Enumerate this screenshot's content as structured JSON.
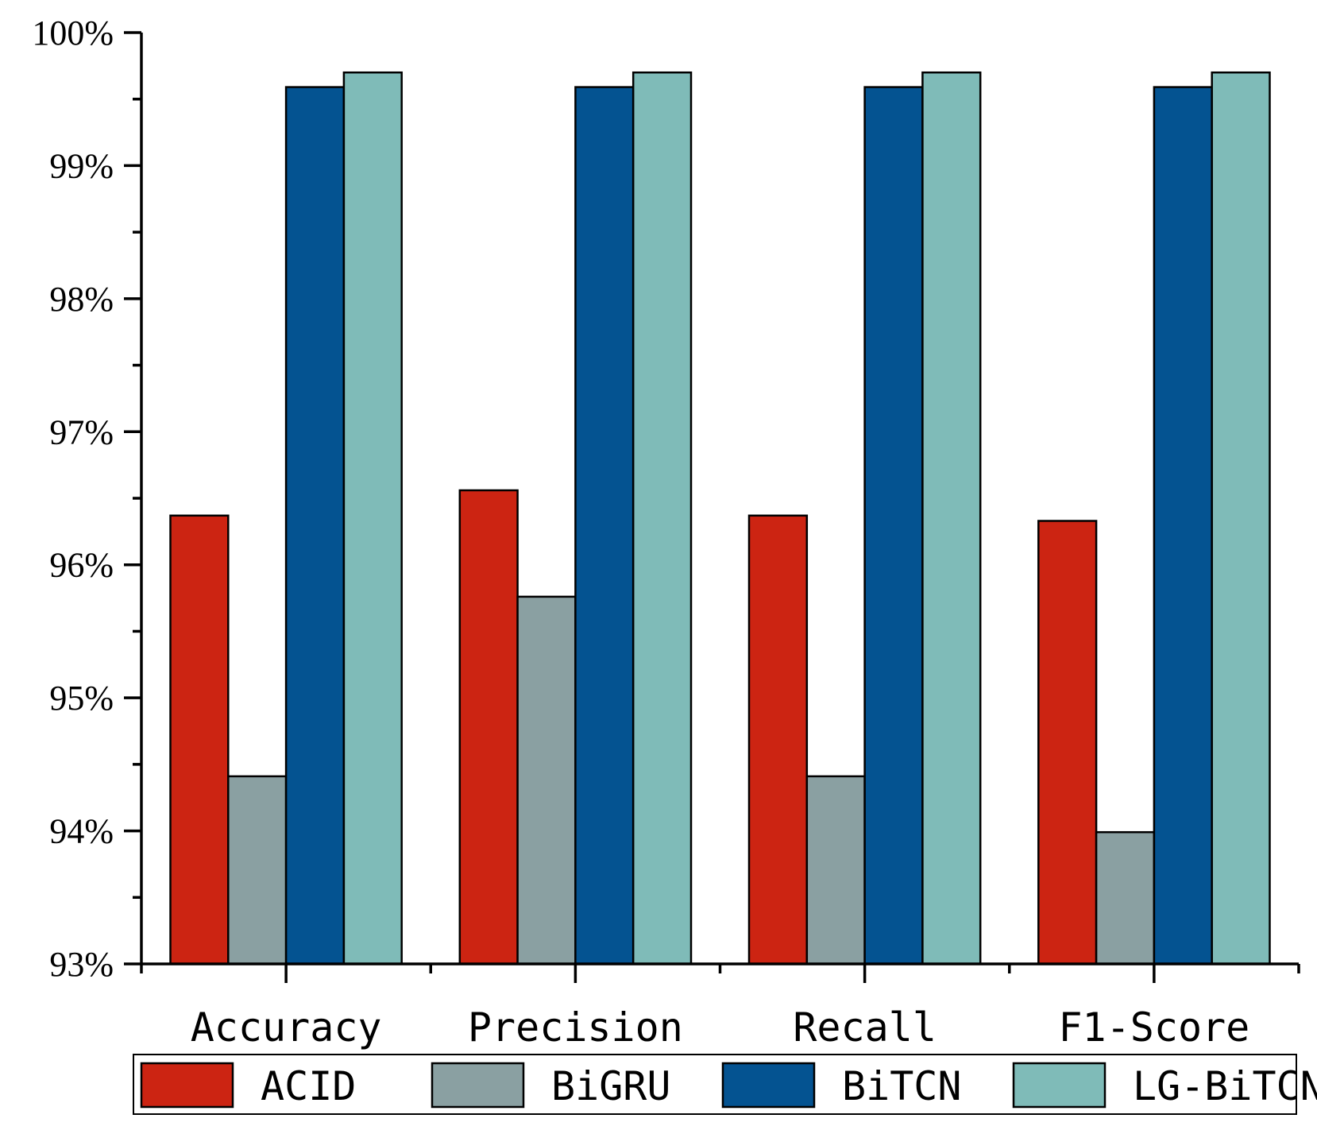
{
  "chart_data": {
    "type": "bar",
    "title": "",
    "xlabel": "",
    "ylabel": "",
    "categories": [
      "Accuracy",
      "Precision",
      "Recall",
      "F1-Score"
    ],
    "series": [
      {
        "name": "ACID",
        "color": "#cc2412",
        "values": [
          96.37,
          96.56,
          96.37,
          96.33
        ]
      },
      {
        "name": "BiGRU",
        "color": "#8aa0a2",
        "values": [
          94.41,
          95.76,
          94.41,
          93.99
        ]
      },
      {
        "name": "BiTCN",
        "color": "#045391",
        "values": [
          99.59,
          99.59,
          99.59,
          99.59
        ]
      },
      {
        "name": "LG-BiTCN",
        "color": "#7fbbb8",
        "values": [
          99.7,
          99.7,
          99.7,
          99.7
        ]
      }
    ],
    "ylim": [
      93,
      100
    ],
    "yticks": [
      "93%",
      "94%",
      "95%",
      "96%",
      "97%",
      "98%",
      "99%",
      "100%"
    ],
    "grid": false,
    "legend_position": "bottom"
  }
}
